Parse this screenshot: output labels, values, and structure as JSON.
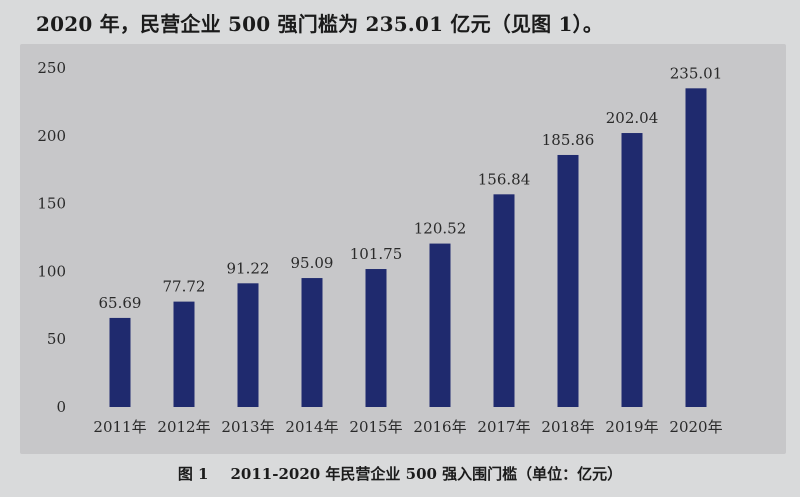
{
  "intro_text": "2020 年，民营企业 500 强门槛为 235.01 亿元（见图 1）。",
  "caption": {
    "label": "图 1",
    "text": "2011-2020 年民营企业 500 强入围门槛（单位：亿元）"
  },
  "colors": {
    "bar": "#1f2a6e"
  },
  "chart_data": {
    "type": "bar",
    "title": "2011-2020 年民营企业 500 强入围门槛（单位：亿元）",
    "xlabel": "",
    "ylabel": "",
    "categories": [
      "2011年",
      "2012年",
      "2013年",
      "2014年",
      "2015年",
      "2016年",
      "2017年",
      "2018年",
      "2019年",
      "2020年"
    ],
    "values": [
      65.69,
      77.72,
      91.22,
      95.09,
      101.75,
      120.52,
      156.84,
      185.86,
      202.04,
      235.01
    ],
    "value_labels": [
      "65.69",
      "77.72",
      "91.22",
      "95.09",
      "101.75",
      "120.52",
      "156.84",
      "185.86",
      "202.04",
      "235.01"
    ],
    "yticks": [
      0,
      50,
      100,
      150,
      200,
      250
    ],
    "ylim": [
      0,
      250
    ],
    "grid": false,
    "legend": "none"
  }
}
